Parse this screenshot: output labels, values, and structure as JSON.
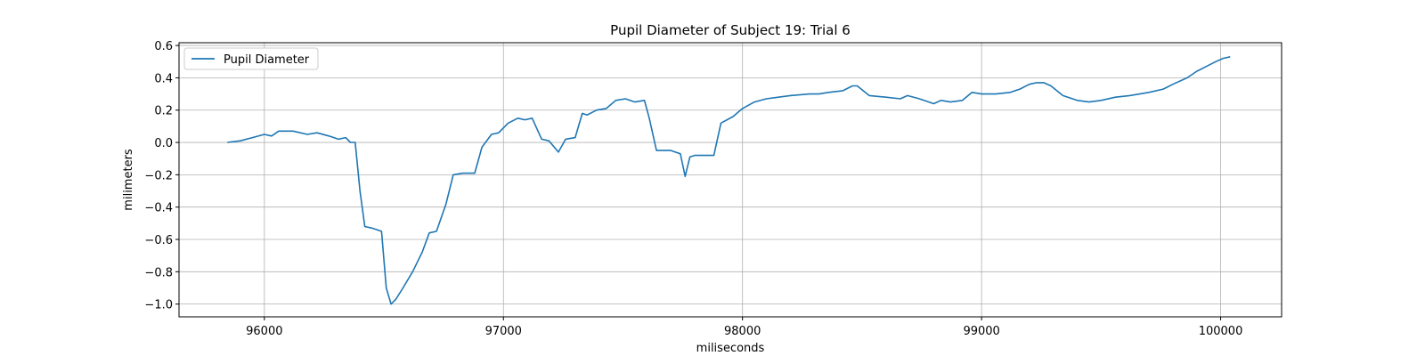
{
  "chart_data": {
    "type": "line",
    "title": "Pupil Diameter of Subject 19: Trial 6",
    "x_label": "miliseconds",
    "y_label": "milimeters",
    "legend": "upper left",
    "grid": true,
    "xlim": [
      95643,
      100255
    ],
    "ylim": [
      -1.079,
      0.617
    ],
    "xticks": [
      96000,
      97000,
      98000,
      99000,
      100000
    ],
    "yticks": [
      {
        "value": -1,
        "label": "−1.0"
      },
      {
        "value": -0.8,
        "label": "−0.8"
      },
      {
        "value": -0.6,
        "label": "−0.6"
      },
      {
        "value": -0.4,
        "label": "−0.4"
      },
      {
        "value": -0.2,
        "label": "−0.2"
      },
      {
        "value": 0,
        "label": "0.0"
      },
      0.2,
      0.4,
      0.6
    ],
    "x": [
      95845,
      95900,
      95950,
      96000,
      96030,
      96060,
      96120,
      96180,
      96220,
      96270,
      96310,
      96340,
      96360,
      96380,
      96400,
      96420,
      96450,
      96490,
      96510,
      96530,
      96550,
      96580,
      96620,
      96660,
      96690,
      96720,
      96760,
      96790,
      96830,
      96880,
      96910,
      96950,
      96980,
      97020,
      97060,
      97090,
      97120,
      97160,
      97190,
      97230,
      97260,
      97300,
      97330,
      97350,
      97390,
      97430,
      97470,
      97510,
      97550,
      97590,
      97610,
      97640,
      97700,
      97740,
      97760,
      97780,
      97800,
      97880,
      97910,
      97960,
      98000,
      98050,
      98100,
      98150,
      98200,
      98280,
      98320,
      98360,
      98420,
      98460,
      98480,
      98530,
      98600,
      98660,
      98690,
      98740,
      98800,
      98830,
      98870,
      98920,
      98960,
      99000,
      99060,
      99120,
      99160,
      99200,
      99230,
      99260,
      99290,
      99340,
      99400,
      99450,
      99500,
      99560,
      99620,
      99700,
      99760,
      99800,
      99860,
      99900,
      99940,
      99980,
      100010,
      100040
    ],
    "series": [
      {
        "name": "Pupil Diameter",
        "color": "#1f77b4",
        "values": [
          0.0,
          0.01,
          0.03,
          0.05,
          0.04,
          0.07,
          0.07,
          0.05,
          0.06,
          0.04,
          0.02,
          0.03,
          0.0,
          0.0,
          -0.3,
          -0.52,
          -0.53,
          -0.55,
          -0.9,
          -1.0,
          -0.97,
          -0.9,
          -0.8,
          -0.68,
          -0.56,
          -0.55,
          -0.38,
          -0.2,
          -0.19,
          -0.19,
          -0.03,
          0.05,
          0.06,
          0.12,
          0.15,
          0.14,
          0.15,
          0.02,
          0.01,
          -0.06,
          0.02,
          0.03,
          0.18,
          0.17,
          0.2,
          0.21,
          0.26,
          0.27,
          0.25,
          0.26,
          0.15,
          -0.05,
          -0.05,
          -0.07,
          -0.21,
          -0.09,
          -0.08,
          -0.08,
          0.12,
          0.16,
          0.21,
          0.25,
          0.27,
          0.28,
          0.29,
          0.3,
          0.3,
          0.31,
          0.32,
          0.35,
          0.35,
          0.29,
          0.28,
          0.27,
          0.29,
          0.27,
          0.24,
          0.26,
          0.25,
          0.26,
          0.31,
          0.3,
          0.3,
          0.31,
          0.33,
          0.36,
          0.37,
          0.37,
          0.35,
          0.29,
          0.26,
          0.25,
          0.26,
          0.28,
          0.29,
          0.31,
          0.33,
          0.36,
          0.4,
          0.44,
          0.47,
          0.5,
          0.52,
          0.53
        ]
      }
    ]
  }
}
